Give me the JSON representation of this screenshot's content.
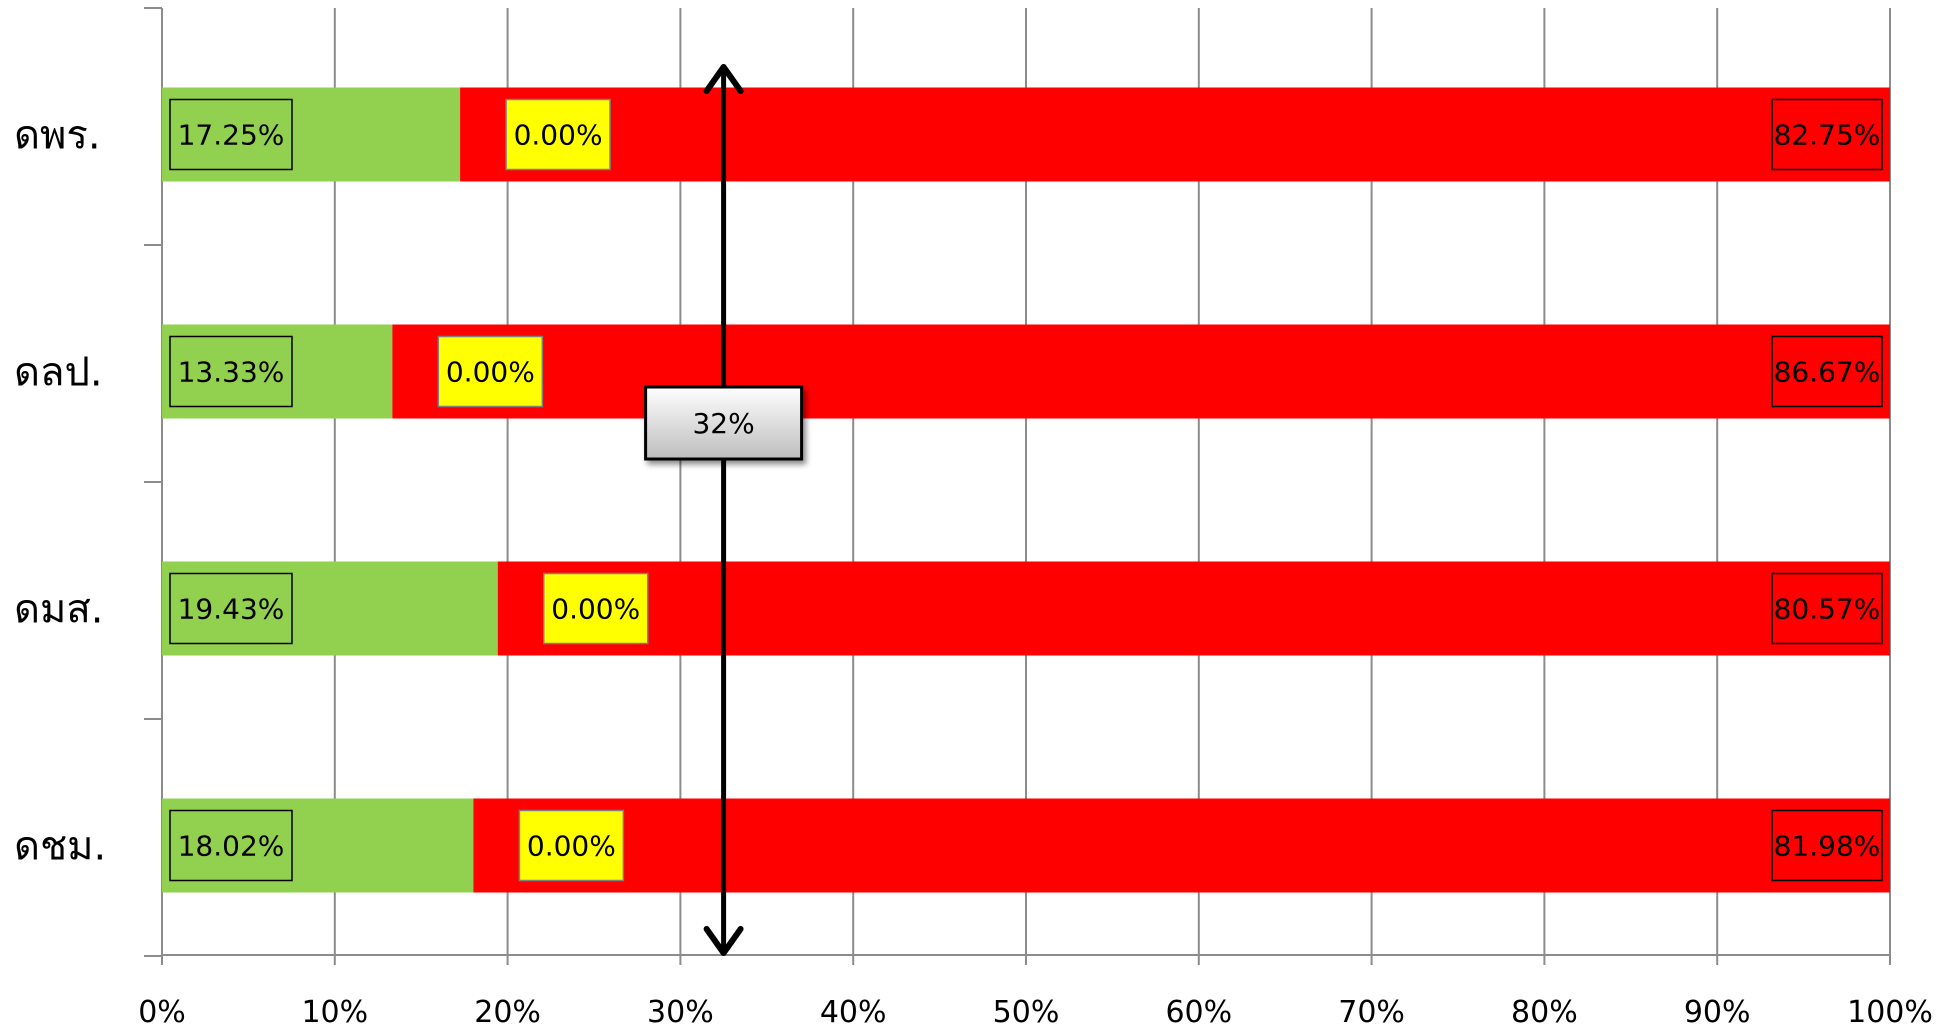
{
  "chart_data": {
    "type": "bar",
    "orientation": "horizontal",
    "stacked": "percent",
    "categories": [
      "ดพร.",
      "ดลป.",
      "ดมส.",
      "ดชม."
    ],
    "series": [
      {
        "values": [
          17.25,
          13.33,
          19.43,
          18.02
        ],
        "labels": [
          "17.25%",
          "13.33%",
          "19.43%",
          "18.02%"
        ],
        "color": "#92D050"
      },
      {
        "values": [
          0.0,
          0.0,
          0.0,
          0.0
        ],
        "labels": [
          "0.00%",
          "0.00%",
          "0.00%",
          "0.00%"
        ],
        "color": "#FFFF00"
      },
      {
        "values": [
          82.75,
          86.67,
          80.57,
          81.98
        ],
        "labels": [
          "82.75%",
          "86.67%",
          "80.57%",
          "81.98%"
        ],
        "color": "#FF0000"
      }
    ],
    "x_ticks": [
      "0%",
      "10%",
      "20%",
      "30%",
      "40%",
      "50%",
      "60%",
      "70%",
      "80%",
      "90%",
      "100%"
    ],
    "xlim": [
      0,
      100
    ],
    "grid": "vertical",
    "legend": "none",
    "annotation": {
      "type": "double-arrow-vertical",
      "x": 32.5,
      "label": "32%"
    }
  }
}
